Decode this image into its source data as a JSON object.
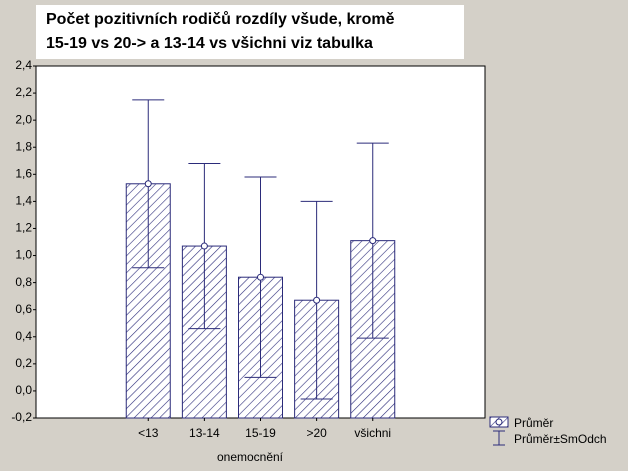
{
  "chart_data": {
    "type": "bar",
    "title": "Počet pozitivních rodičů rozdíly všude, kromě",
    "subtitle": "15-19 vs 20-> a 13-14 vs všichni viz tabulka",
    "x_label": "onemocnění",
    "categories": [
      "<13",
      "13-14",
      "15-19",
      ">20",
      "všichni"
    ],
    "series": [
      {
        "name": "Průměr",
        "color": "#2b2b7a",
        "values": [
          1.53,
          1.07,
          0.84,
          0.67,
          1.11
        ],
        "errors": [
          0.62,
          0.61,
          0.74,
          0.73,
          0.72
        ],
        "error_name": "Průměr±SmOdch"
      }
    ],
    "ylim": [
      -0.2,
      2.4
    ],
    "yticks": [
      {
        "value": -0.2,
        "label": "-0,2"
      },
      {
        "value": 0,
        "label": "0,0"
      },
      {
        "value": 0.2,
        "label": "0,2"
      },
      {
        "value": 0.4,
        "label": "0,4"
      },
      {
        "value": 0.6,
        "label": "0,6"
      },
      {
        "value": 0.8,
        "label": "0,8"
      },
      {
        "value": 1.0,
        "label": "1,0"
      },
      {
        "value": 1.2,
        "label": "1,2"
      },
      {
        "value": 1.4,
        "label": "1,4"
      },
      {
        "value": 1.6,
        "label": "1,6"
      },
      {
        "value": 1.8,
        "label": "1,8"
      },
      {
        "value": 2.0,
        "label": "2,0"
      },
      {
        "value": 2.2,
        "label": "2,2"
      },
      {
        "value": 2.4,
        "label": "2,4"
      }
    ],
    "grid": false
  }
}
